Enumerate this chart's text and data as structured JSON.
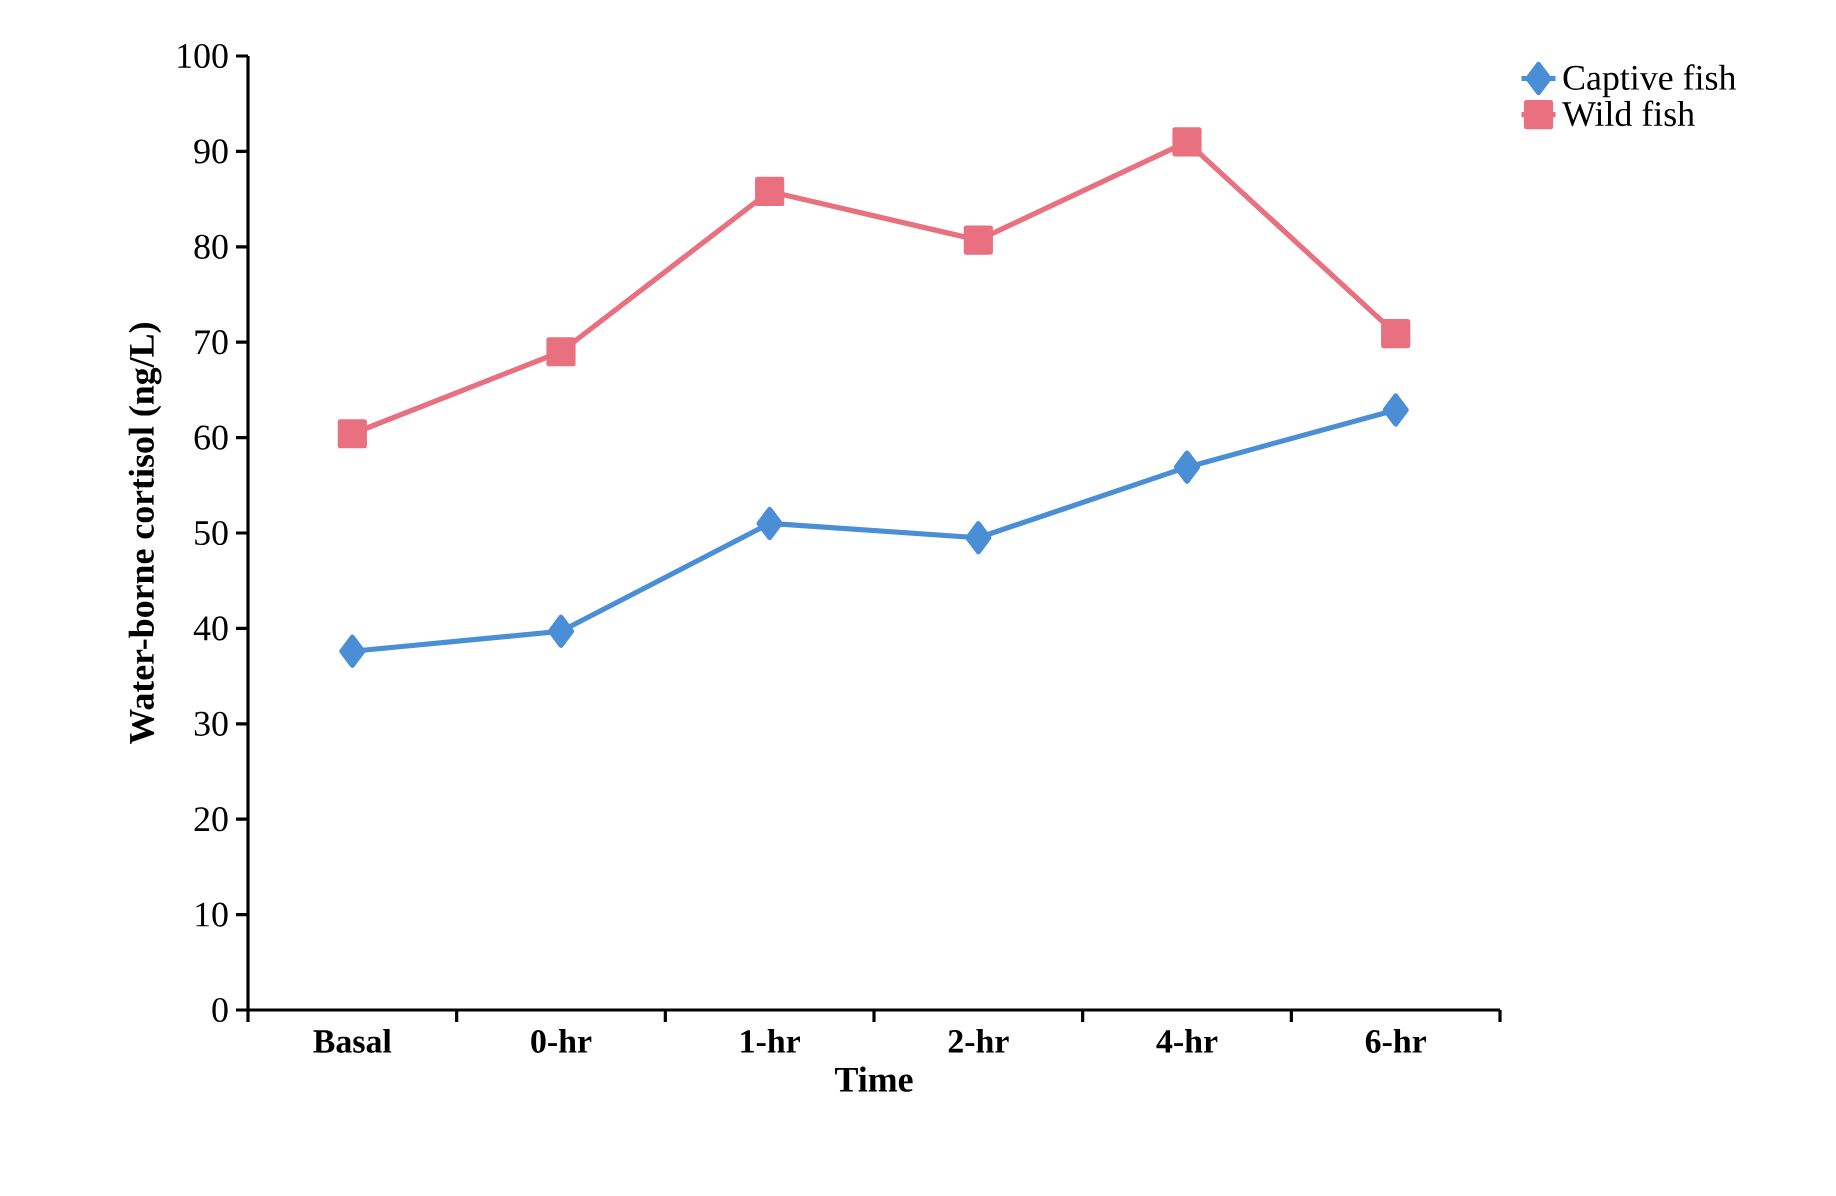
{
  "chart_data": {
    "type": "line",
    "xlabel": "Time",
    "ylabel": "Water-borne cortisol (ng/L)",
    "categories": [
      "Basal",
      "0-hr",
      "1-hr",
      "2-hr",
      "4-hr",
      "6-hr"
    ],
    "series": [
      {
        "name": "Captive fish",
        "color": "#4a8fd6",
        "marker": "diamond",
        "values": [
          37.6,
          39.7,
          51,
          49.5,
          56.9,
          62.9
        ]
      },
      {
        "name": "Wild fish",
        "color": "#e8707f",
        "marker": "square",
        "values": [
          60.4,
          69,
          85.8,
          80.7,
          91,
          70.9
        ]
      }
    ],
    "ylim": [
      0,
      100
    ],
    "yticks": [
      0,
      10,
      20,
      30,
      40,
      50,
      60,
      70,
      80,
      90,
      100
    ],
    "grid": false,
    "legend": "top right",
    "line_style": "solid"
  }
}
